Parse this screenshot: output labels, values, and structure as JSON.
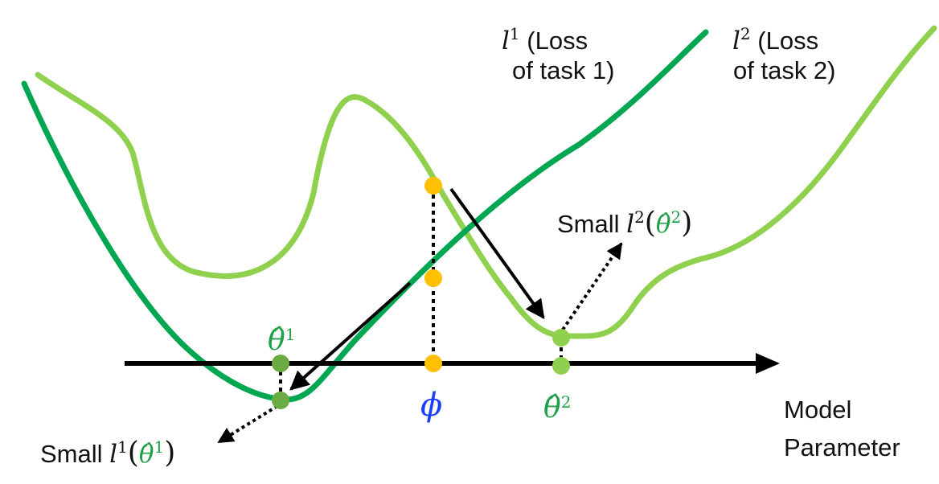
{
  "colors": {
    "loss_task1": "#00a651",
    "loss_task2": "#8fd14f",
    "phi_points": "#ffc000",
    "theta_points": "#6aab42",
    "phi_label": "#1a3dff",
    "theta_label": "#21a04a",
    "axis": "#000000"
  },
  "labels": {
    "l1_symbol": "l",
    "l1_sup": "1",
    "l1_line1": "(Loss",
    "l1_line2": "of task 1)",
    "l2_symbol": "l",
    "l2_sup": "2",
    "l2_line1": "(Loss",
    "l2_line2": "of task 2)",
    "axis_line1": "Model",
    "axis_line2": "Parameter",
    "phi": "ϕ",
    "theta1_symbol": "θ̂",
    "theta1_sup": "1",
    "theta2_symbol": "θ̂",
    "theta2_sup": "2",
    "small_l2_prefix": "Small",
    "small_l2_symbol": "l",
    "small_l2_sup": "2",
    "small_l2_open": "(",
    "small_l2_arg": "θ̂",
    "small_l2_arg_sup": "2",
    "small_l2_close": ")",
    "small_l1_prefix": "Small",
    "small_l1_symbol": "l",
    "small_l1_sup": "1",
    "small_l1_open": "(",
    "small_l1_arg": "θ̂",
    "small_l1_arg_sup": "1",
    "small_l1_close": ")"
  }
}
